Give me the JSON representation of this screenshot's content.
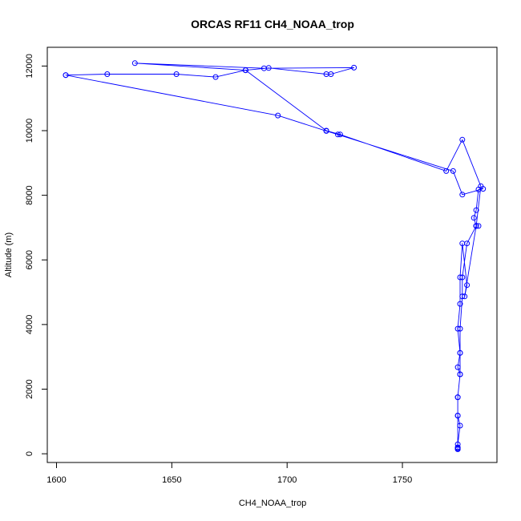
{
  "chart_data": {
    "type": "line",
    "title": "ORCAS RF11 CH4_NOAA_trop",
    "xlabel": "CH4_NOAA_trop",
    "ylabel": "Altitude (m)",
    "xlim": [
      1596,
      1791
    ],
    "ylim": [
      -270,
      12580
    ],
    "xticks": [
      1600,
      1650,
      1700,
      1750
    ],
    "yticks": [
      0,
      2000,
      4000,
      6000,
      8000,
      10000,
      12000
    ],
    "grid": false,
    "legend": "none",
    "line_color": "#0000ff",
    "marker": "open-circle",
    "series": [
      {
        "x": [
          1774,
          1774,
          1775,
          1774,
          1774,
          1775,
          1774,
          1775,
          1774,
          1775,
          1775,
          1776,
          1778,
          1777,
          1782,
          1781,
          1782,
          1783,
          1785,
          1776,
          1772,
          1722,
          1717,
          1696,
          1604,
          1604,
          1622,
          1652,
          1669,
          1682,
          1692,
          1717,
          1719,
          1729,
          1690,
          1634,
          1682,
          1717,
          1723,
          1769,
          1776,
          1784,
          1782,
          1783,
          1782,
          1778,
          1776,
          1776,
          1775,
          1775,
          1775,
          1774,
          1774,
          1774,
          1774,
          1774
        ],
        "y": [
          180,
          290,
          870,
          1180,
          1750,
          2460,
          2680,
          3120,
          3870,
          4640,
          5460,
          6510,
          5220,
          4870,
          7050,
          7300,
          7540,
          8180,
          8200,
          8020,
          8750,
          9880,
          9990,
          10470,
          11720,
          11720,
          11750,
          11750,
          11660,
          11870,
          11940,
          11750,
          11750,
          11950,
          11930,
          12090,
          11870,
          10000,
          9880,
          8750,
          9720,
          8280,
          7050,
          7050,
          7050,
          6510,
          5460,
          4870,
          3870,
          3120,
          2460,
          1750,
          1180,
          200,
          150,
          140
        ]
      }
    ]
  }
}
